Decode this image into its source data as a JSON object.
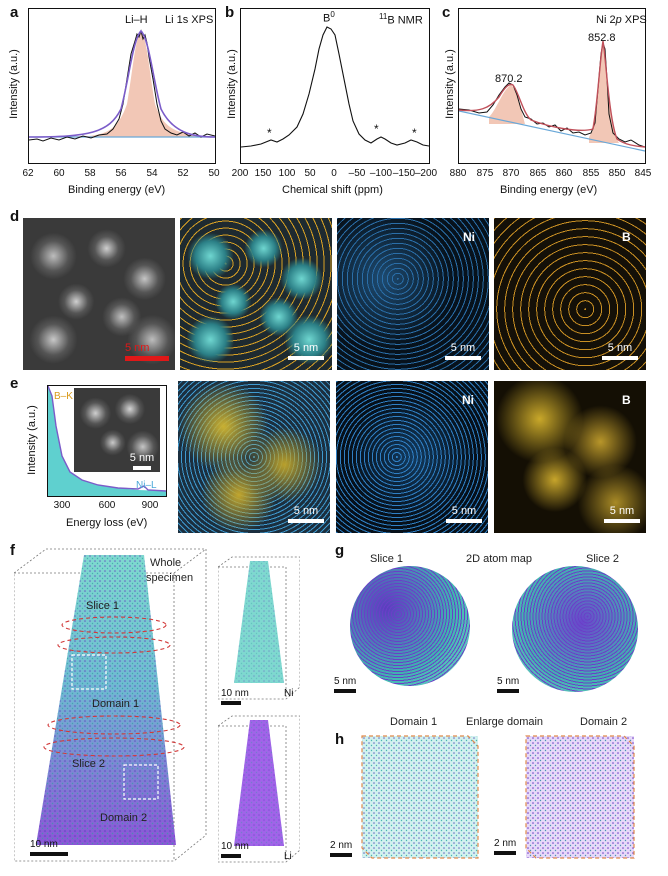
{
  "panel_labels": {
    "a": "a",
    "b": "b",
    "c": "c",
    "d": "d",
    "e": "e",
    "f": "f",
    "g": "g",
    "h": "h"
  },
  "panel_a": {
    "title": "Li 1s XPS",
    "peak_label": "Li–H",
    "xlabel": "Binding energy (eV)",
    "ylabel": "Intensity (a.u.)",
    "x_ticks": [
      "62",
      "60",
      "58",
      "56",
      "54",
      "52",
      "50"
    ]
  },
  "panel_b": {
    "title_sup": "11",
    "title_rest": "B NMR",
    "peak_label": "B",
    "peak_sup": "0",
    "xlabel": "Chemical shift (ppm)",
    "ylabel": "Intensity (a.u.)",
    "x_ticks": [
      "200",
      "150",
      "100",
      "50",
      "0",
      "–50",
      "–100",
      "–150",
      "–200"
    ],
    "star": "*"
  },
  "panel_c": {
    "title_pre": "Ni 2",
    "title_it": "p",
    "title_post": " XPS",
    "peak1": "870.2",
    "peak2": "852.8",
    "xlabel": "Binding energy (eV)",
    "ylabel": "Intensity (a.u.)",
    "x_ticks": [
      "880",
      "875",
      "870",
      "865",
      "860",
      "855",
      "850",
      "845"
    ]
  },
  "panel_d": {
    "scalebars": [
      "5 nm",
      "5 nm",
      "5 nm",
      "5 nm"
    ],
    "map_ni": "Ni",
    "map_b": "B"
  },
  "panel_e": {
    "edge_bk": "B–K",
    "edge_nil": "Ni–L",
    "xlabel": "Energy loss (eV)",
    "ylabel": "Intensity (a.u.)",
    "x_ticks": [
      "300",
      "600",
      "900"
    ],
    "inset_scale": "5 nm",
    "scalebars": [
      "5 nm",
      "5 nm",
      "5 nm"
    ],
    "map_ni": "Ni",
    "map_b": "B"
  },
  "panel_f": {
    "whole1": "Whole",
    "whole2": "specimen",
    "slice1": "Slice 1",
    "slice2": "Slice 2",
    "domain1": "Domain 1",
    "domain2": "Domain 2",
    "scale_main": "10 nm",
    "scale_ni": "10 nm",
    "label_ni": "Ni",
    "scale_li": "10 nm",
    "label_li": "Li"
  },
  "panel_g": {
    "slice1": "Slice 1",
    "title": "2D  atom  map",
    "slice2": "Slice 2",
    "scale1": "5 nm",
    "scale2": "5 nm"
  },
  "panel_h": {
    "domain1": "Domain 1",
    "title": "Enlarge domain",
    "domain2": "Domain 2",
    "scale1": "2 nm",
    "scale2": "2 nm"
  },
  "colors": {
    "fit_purple": "#7b5cc9",
    "fill_peach": "#f2c7b6",
    "background_line": "#6aa8d8",
    "edge_bk": "#d99a1a",
    "edge_nil": "#4aa7d8",
    "eels_fill": "#5fd0cf",
    "ni_cyan": "#4ec9c0",
    "li_purple": "#7a3fd0",
    "box_orange": "#e0894a",
    "slice_red": "#d23a3a",
    "scale_red": "#e01818"
  }
}
